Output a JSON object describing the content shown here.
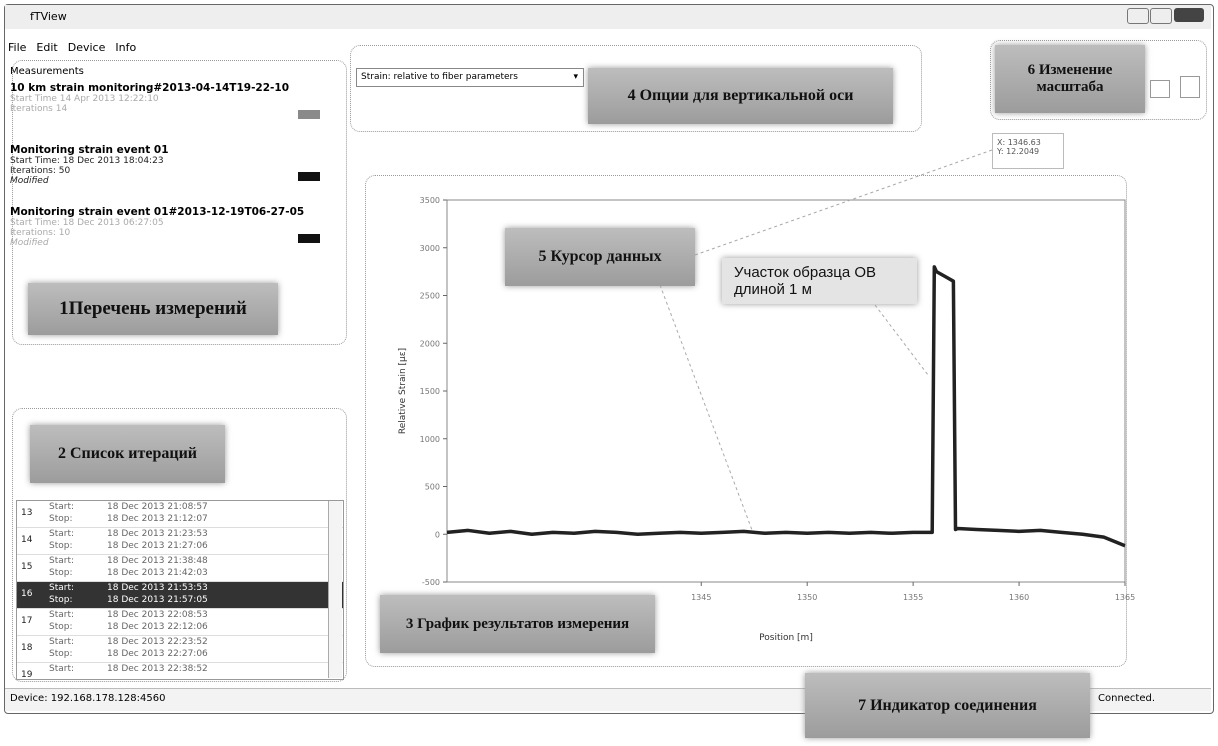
{
  "window": {
    "title": "fTView"
  },
  "menu": [
    "File",
    "Edit",
    "Device",
    "Info"
  ],
  "measurements": {
    "header": "Measurements",
    "items": [
      {
        "name": "10 km strain monitoring#2013-04-14T19-22-10",
        "lines": [
          "Start Time 14 Apr 2013 12:22:10",
          "Iterations 14"
        ],
        "color": "#8a8a8a",
        "faded": true
      },
      {
        "name": "Monitoring strain event 01",
        "lines": [
          "Start Time: 18 Dec 2013 18:04:23",
          "Iterations: 50",
          "Modified"
        ],
        "color": "#111111",
        "faded": false
      },
      {
        "name": "Monitoring strain event 01#2013-12-19T06-27-05",
        "lines": [
          "Start Time: 18 Dec 2013 06:27:05",
          "Iterations: 10",
          "Modified"
        ],
        "color": "#111111",
        "faded": true
      }
    ]
  },
  "iterations": [
    {
      "number": "13",
      "start_label": "Start:",
      "start": "18 Dec 2013 21:08:57",
      "stop_label": "Stop:",
      "stop": "18 Dec 2013 21:12:07",
      "selected": false
    },
    {
      "number": "14",
      "start_label": "Start:",
      "start": "18 Dec 2013 21:23:53",
      "stop_label": "Stop:",
      "stop": "18 Dec 2013 21:27:06",
      "selected": false
    },
    {
      "number": "15",
      "start_label": "Start:",
      "start": "18 Dec 2013 21:38:48",
      "stop_label": "Stop:",
      "stop": "18 Dec 2013 21:42:03",
      "selected": false
    },
    {
      "number": "16",
      "start_label": "Start:",
      "start": "18 Dec 2013 21:53:53",
      "stop_label": "Stop:",
      "stop": "18 Dec 2013 21:57:05",
      "selected": true
    },
    {
      "number": "17",
      "start_label": "Start:",
      "start": "18 Dec 2013 22:08:53",
      "stop_label": "Stop:",
      "stop": "18 Dec 2013 22:12:06",
      "selected": false
    },
    {
      "number": "18",
      "start_label": "Start:",
      "start": "18 Dec 2013 22:23:52",
      "stop_label": "Stop:",
      "stop": "18 Dec 2013 22:27:06",
      "selected": false
    },
    {
      "number": "19",
      "start_label": "Start:",
      "start": "18 Dec 2013 22:38:52",
      "selected": false
    }
  ],
  "vertical_axis_option": "Strain: relative to fiber parameters",
  "cursor": {
    "x": "X: 1346.63",
    "y": "Y: 12.2049"
  },
  "annotations": {
    "a1": "1Перечень измерений",
    "a2": "2 Список итераций",
    "a3": "3 График результатов измерения",
    "a4": "4 Опции для вертикальной оси",
    "a5": "5 Курсор данных",
    "a6": "6 Изменение масштаба",
    "a7": "7 Индикатор соединения",
    "sample": "Участок образца ОВ длиной 1 м"
  },
  "status": {
    "device": "Device: 192.168.178.128:4560",
    "connection": "Connected."
  },
  "chart_data": {
    "type": "line",
    "x_label": "Position [m]",
    "y_label": "Relative Strain [µε]",
    "x": [
      1333,
      1334,
      1335,
      1336,
      1337,
      1338,
      1339,
      1340,
      1341,
      1342,
      1343,
      1344,
      1345,
      1346,
      1347,
      1348,
      1349,
      1350,
      1351,
      1352,
      1353,
      1354,
      1355,
      1355.9,
      1356,
      1356.1,
      1356.5,
      1356.9,
      1357,
      1357.1,
      1358,
      1359,
      1360,
      1361,
      1362,
      1363,
      1364,
      1365
    ],
    "values": [
      20,
      40,
      10,
      30,
      0,
      20,
      10,
      30,
      20,
      0,
      10,
      20,
      10,
      20,
      30,
      10,
      20,
      10,
      20,
      10,
      20,
      10,
      20,
      20,
      2800,
      2750,
      2700,
      2650,
      50,
      60,
      50,
      40,
      30,
      40,
      20,
      0,
      -30,
      -120
    ],
    "color": "#222222",
    "xlim": [
      1333,
      1365
    ],
    "ylim": [
      -500,
      3500
    ],
    "xticks": [
      1345,
      1350,
      1355,
      1360,
      1365
    ],
    "yticks": [
      -500,
      0,
      500,
      1000,
      1500,
      2000,
      2500,
      3000,
      3500
    ]
  }
}
